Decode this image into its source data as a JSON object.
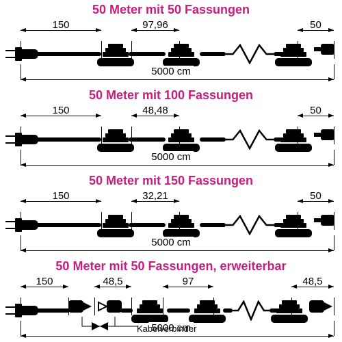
{
  "rows": [
    {
      "title": "50 Meter mit 50 Fassungen",
      "dims": {
        "lead": "150",
        "spacing": "97,96",
        "end": "50"
      },
      "total": "5000 cm",
      "extendable": false
    },
    {
      "title": "50 Meter mit 100 Fassungen",
      "dims": {
        "lead": "150",
        "spacing": "48,48",
        "end": "50"
      },
      "total": "5000 cm",
      "extendable": false
    },
    {
      "title": "50 Meter mit 150 Fassungen",
      "dims": {
        "lead": "150",
        "spacing": "32,21",
        "end": "50"
      },
      "total": "5000 cm",
      "extendable": false
    },
    {
      "title": "50 Meter mit 50 Fassungen, erweiterbar",
      "dims": {
        "lead": "150",
        "conn": "48,5",
        "spacing": "97",
        "end": "48,5"
      },
      "total": "5000 cm",
      "extendable": true,
      "connector_label": "Kabelverbinder"
    }
  ],
  "colors": {
    "title": "#c41e7f",
    "line": "#000000",
    "cable": "#000000"
  },
  "geometry": {
    "plugX": 16,
    "leadEndX": 148,
    "socket2MidX": 262,
    "endCapX": 435,
    "rightTickX": 488,
    "zigzagStart": 330,
    "zigzagEnd": 400,
    "bottomLeftX": 30,
    "ext": {
      "connLeftMid": 118,
      "connRightMid": 160,
      "socket1Mid": 215,
      "socket2Mid": 300,
      "endConnMid": 448
    }
  }
}
